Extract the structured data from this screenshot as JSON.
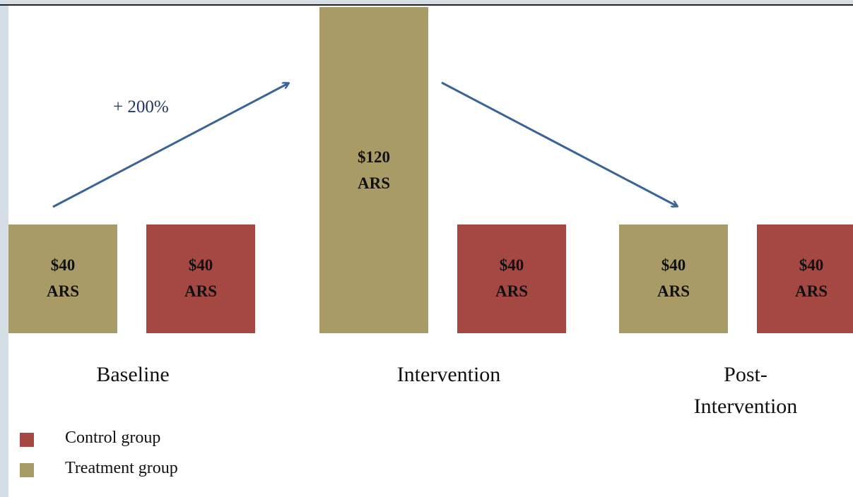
{
  "chart_data": {
    "type": "bar",
    "categories": [
      "Baseline",
      "Intervention",
      "Post-Intervention"
    ],
    "series": [
      {
        "name": "Control group",
        "color": "#a54843",
        "values": [
          40,
          40,
          40
        ],
        "value_labels": [
          "$40\nARS",
          "$40\nARS",
          "$40\nARS"
        ]
      },
      {
        "name": "Treatment group",
        "color": "#a89b65",
        "values": [
          40,
          120,
          40
        ],
        "value_labels": [
          "$40\nARS",
          "$120\nARS",
          "$40\nARS"
        ]
      }
    ],
    "annotations": [
      "+ 200%"
    ]
  }
}
